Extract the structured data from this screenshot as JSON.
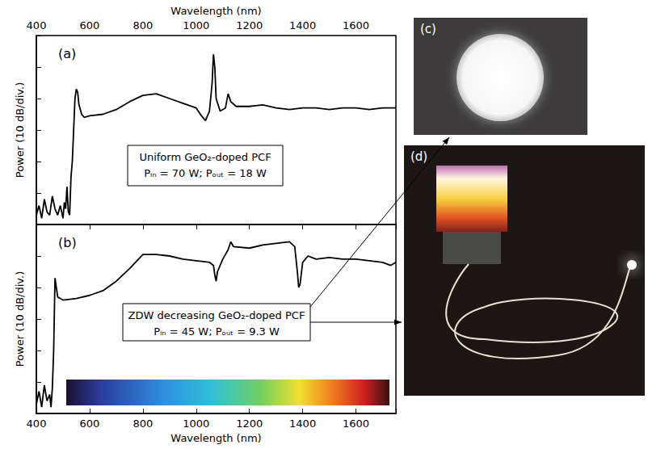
{
  "chart_data": [
    {
      "type": "line",
      "panel_label": "(a)",
      "annotation": [
        "Uniform GeO₂-doped PCF",
        "Pᵢₙ = 70 W; Pₒᵤₜ = 18 W"
      ],
      "x_label": "Wavelength (nm)",
      "y_label": "Power (10 dB/div.)",
      "x": [
        400,
        410,
        420,
        430,
        440,
        450,
        460,
        470,
        480,
        490,
        500,
        505,
        510,
        515,
        520,
        525,
        530,
        535,
        540,
        545,
        550,
        555,
        560,
        570,
        580,
        600,
        650,
        700,
        750,
        800,
        850,
        900,
        950,
        1000,
        1020,
        1035,
        1050,
        1060,
        1065,
        1070,
        1075,
        1090,
        1110,
        1120,
        1130,
        1150,
        1200,
        1250,
        1300,
        1350,
        1400,
        1450,
        1500,
        1550,
        1600,
        1650,
        1700,
        1750
      ],
      "series": [
        {
          "color": "#000000",
          "marker": "none",
          "line_style": "solid",
          "values": [
            3,
            6,
            2,
            8,
            4,
            3,
            9,
            5,
            3,
            6,
            2,
            7,
            5,
            12,
            4,
            3,
            15,
            20,
            30,
            40,
            43,
            42,
            38,
            35,
            34,
            34.5,
            35,
            36.5,
            39,
            41,
            41.5,
            40,
            38.5,
            37,
            34.5,
            33,
            36,
            45,
            54,
            50,
            40,
            36,
            37,
            41.5,
            39,
            37.5,
            37.5,
            38,
            37,
            36.5,
            37,
            37,
            36.5,
            37,
            37,
            36.5,
            37,
            37
          ]
        }
      ],
      "xlim": [
        400,
        1750
      ],
      "xticks": [
        400,
        600,
        800,
        1000,
        1200,
        1400,
        1600
      ],
      "ylim": [
        0,
        60
      ],
      "yticks": [
        0,
        10,
        20,
        30,
        40,
        50,
        60
      ],
      "tick_labels": "x",
      "grid": false
    },
    {
      "type": "line",
      "panel_label": "(b)",
      "annotation": [
        "ZDW decreasing GeO₂-doped PCF",
        "Pᵢₙ = 45 W; Pₒᵤₜ = 9.3 W"
      ],
      "x_label": "Wavelength (nm)",
      "y_label": "Power (10 dB/div.)",
      "x": [
        400,
        410,
        420,
        430,
        440,
        450,
        455,
        460,
        465,
        470,
        475,
        480,
        500,
        550,
        600,
        650,
        700,
        750,
        800,
        850,
        900,
        950,
        1000,
        1050,
        1065,
        1070,
        1075,
        1080,
        1100,
        1120,
        1130,
        1140,
        1200,
        1250,
        1300,
        1350,
        1370,
        1380,
        1385,
        1390,
        1400,
        1420,
        1450,
        1500,
        1550,
        1600,
        1650,
        1700,
        1730,
        1750
      ],
      "series": [
        {
          "color": "#000000",
          "marker": "none",
          "line_style": "solid",
          "values": [
            3,
            7,
            2,
            9,
            4,
            6,
            2,
            8,
            20,
            43,
            40,
            37,
            36,
            36.5,
            37.5,
            39,
            42,
            46,
            50.5,
            50.5,
            50,
            49,
            48.5,
            48,
            47,
            44,
            42,
            45,
            49,
            52,
            54.5,
            53,
            52.5,
            53.5,
            54,
            54.5,
            53,
            45,
            40,
            41,
            48,
            50,
            49,
            49.5,
            49,
            49,
            48.5,
            48,
            47,
            48
          ]
        }
      ],
      "xlim": [
        400,
        1750
      ],
      "xticks": [
        400,
        600,
        800,
        1000,
        1200,
        1400,
        1600
      ],
      "ylim": [
        0,
        60
      ],
      "yticks": [
        0,
        10,
        20,
        30,
        40,
        50,
        60
      ],
      "tick_labels": "x",
      "grid": false
    }
  ],
  "photos": [
    {
      "label": "(c)"
    },
    {
      "label": "(d)"
    }
  ]
}
